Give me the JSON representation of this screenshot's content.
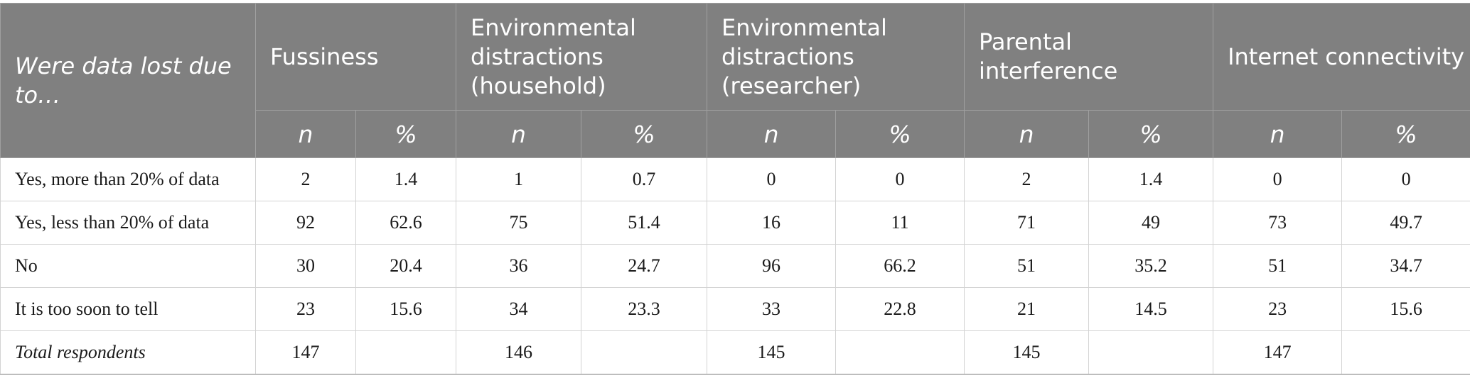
{
  "table": {
    "corner_label": "Were data lost due to…",
    "groups": [
      {
        "label": "Fussiness"
      },
      {
        "label": "Environmental distractions (household)"
      },
      {
        "label": "Environmental distractions (researcher)"
      },
      {
        "label": "Parental interference"
      },
      {
        "label": "Internet connectivity"
      }
    ],
    "sub_labels": {
      "n": "n",
      "pct": "%"
    },
    "rows": [
      {
        "label": "Yes, more than 20% of data",
        "cells": [
          "2",
          "1.4",
          "1",
          "0.7",
          "0",
          "0",
          "2",
          "1.4",
          "0",
          "0"
        ]
      },
      {
        "label": "Yes, less than 20% of data",
        "cells": [
          "92",
          "62.6",
          "75",
          "51.4",
          "16",
          "11",
          "71",
          "49",
          "73",
          "49.7"
        ]
      },
      {
        "label": "No",
        "cells": [
          "30",
          "20.4",
          "36",
          "24.7",
          "96",
          "66.2",
          "51",
          "35.2",
          "51",
          "34.7"
        ]
      },
      {
        "label": "It is too soon to tell",
        "cells": [
          "23",
          "15.6",
          "34",
          "23.3",
          "33",
          "22.8",
          "21",
          "14.5",
          "23",
          "15.6"
        ]
      },
      {
        "label": "Total respondents",
        "cells": [
          "147",
          "",
          "146",
          "",
          "145",
          "",
          "145",
          "",
          "147",
          ""
        ]
      }
    ]
  }
}
